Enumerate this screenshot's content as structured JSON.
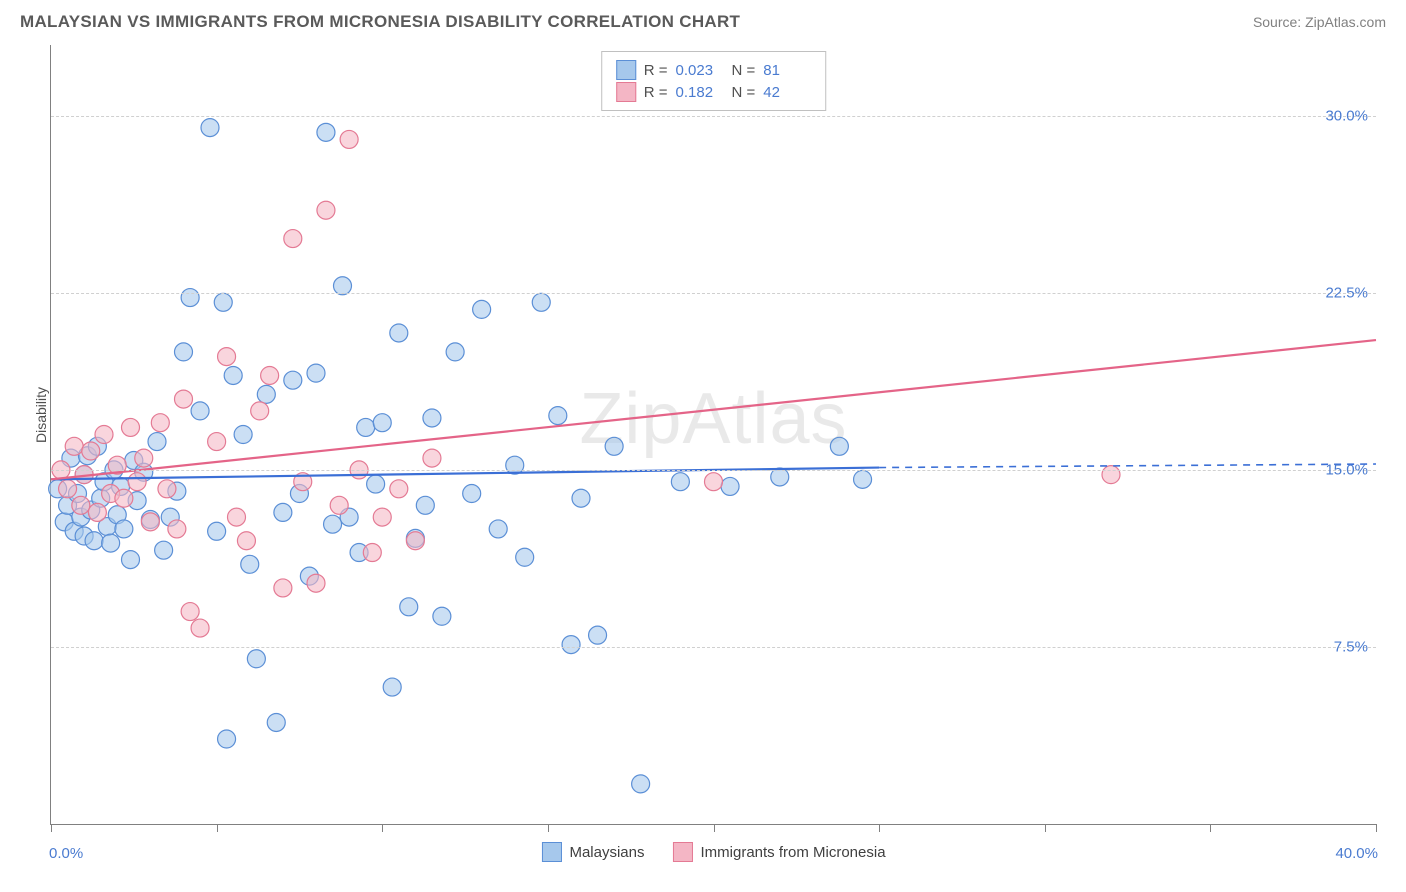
{
  "title": "MALAYSIAN VS IMMIGRANTS FROM MICRONESIA DISABILITY CORRELATION CHART",
  "source": "Source: ZipAtlas.com",
  "watermark": "ZipAtlas",
  "ylabel": "Disability",
  "series": [
    {
      "name": "Malaysians",
      "fill": "#a6c8ec",
      "stroke": "#5b8fd6",
      "r": "0.023",
      "n": "81"
    },
    {
      "name": "Immigrants from Micronesia",
      "fill": "#f4b6c5",
      "stroke": "#e47a94",
      "r": "0.182",
      "n": "42"
    }
  ],
  "chart": {
    "xlim": [
      0,
      40
    ],
    "ylim": [
      0,
      33
    ],
    "y_ticks": [
      7.5,
      15.0,
      22.5,
      30.0
    ],
    "y_tick_labels": [
      "7.5%",
      "15.0%",
      "22.5%",
      "30.0%"
    ],
    "x_ticks": [
      0,
      5,
      10,
      15,
      20,
      25,
      30,
      35,
      40
    ],
    "x_origin_label": "0.0%",
    "x_end_label": "40.0%",
    "grid_color": "#d0d0d0",
    "background": "#ffffff",
    "marker_radius": 9,
    "marker_opacity": 0.58,
    "trend_lines": [
      {
        "series": 0,
        "x1": 0,
        "y1": 14.6,
        "x2": 25,
        "y2": 15.1,
        "dash_from_x": 25,
        "dash_to_x": 40,
        "dash_y": 15.25,
        "color": "#3b6fd6",
        "width": 2.2
      },
      {
        "series": 1,
        "x1": 0,
        "y1": 14.6,
        "x2": 40,
        "y2": 20.5,
        "color": "#e46488",
        "width": 2.2
      }
    ],
    "points_blue": [
      [
        0.2,
        14.2
      ],
      [
        0.4,
        12.8
      ],
      [
        0.5,
        13.5
      ],
      [
        0.6,
        15.5
      ],
      [
        0.7,
        12.4
      ],
      [
        0.8,
        14.0
      ],
      [
        0.9,
        13.0
      ],
      [
        1.0,
        12.2
      ],
      [
        1.0,
        14.8
      ],
      [
        1.1,
        15.6
      ],
      [
        1.2,
        13.3
      ],
      [
        1.3,
        12.0
      ],
      [
        1.4,
        16.0
      ],
      [
        1.5,
        13.8
      ],
      [
        1.6,
        14.5
      ],
      [
        1.7,
        12.6
      ],
      [
        1.8,
        11.9
      ],
      [
        1.9,
        15.0
      ],
      [
        2.0,
        13.1
      ],
      [
        2.1,
        14.3
      ],
      [
        2.2,
        12.5
      ],
      [
        2.4,
        11.2
      ],
      [
        2.5,
        15.4
      ],
      [
        2.6,
        13.7
      ],
      [
        2.8,
        14.9
      ],
      [
        3.0,
        12.9
      ],
      [
        3.2,
        16.2
      ],
      [
        3.4,
        11.6
      ],
      [
        3.6,
        13.0
      ],
      [
        3.8,
        14.1
      ],
      [
        4.0,
        20.0
      ],
      [
        4.2,
        22.3
      ],
      [
        4.5,
        17.5
      ],
      [
        4.8,
        29.5
      ],
      [
        5.0,
        12.4
      ],
      [
        5.2,
        22.1
      ],
      [
        5.5,
        19.0
      ],
      [
        5.8,
        16.5
      ],
      [
        6.0,
        11.0
      ],
      [
        6.2,
        7.0
      ],
      [
        6.5,
        18.2
      ],
      [
        6.8,
        4.3
      ],
      [
        7.0,
        13.2
      ],
      [
        7.3,
        18.8
      ],
      [
        7.5,
        14.0
      ],
      [
        7.8,
        10.5
      ],
      [
        8.0,
        19.1
      ],
      [
        8.3,
        29.3
      ],
      [
        8.5,
        12.7
      ],
      [
        8.8,
        22.8
      ],
      [
        9.0,
        13.0
      ],
      [
        9.3,
        11.5
      ],
      [
        9.5,
        16.8
      ],
      [
        9.8,
        14.4
      ],
      [
        10.0,
        17.0
      ],
      [
        10.3,
        5.8
      ],
      [
        10.5,
        20.8
      ],
      [
        10.8,
        9.2
      ],
      [
        11.0,
        12.1
      ],
      [
        11.3,
        13.5
      ],
      [
        11.5,
        17.2
      ],
      [
        11.8,
        8.8
      ],
      [
        12.2,
        20.0
      ],
      [
        12.7,
        14.0
      ],
      [
        13.0,
        21.8
      ],
      [
        13.5,
        12.5
      ],
      [
        14.0,
        15.2
      ],
      [
        14.3,
        11.3
      ],
      [
        14.8,
        22.1
      ],
      [
        15.3,
        17.3
      ],
      [
        15.7,
        7.6
      ],
      [
        16.0,
        13.8
      ],
      [
        16.5,
        8.0
      ],
      [
        17.0,
        16.0
      ],
      [
        17.8,
        1.7
      ],
      [
        19.0,
        14.5
      ],
      [
        20.5,
        14.3
      ],
      [
        22.0,
        14.7
      ],
      [
        23.8,
        16.0
      ],
      [
        24.5,
        14.6
      ],
      [
        5.3,
        3.6
      ]
    ],
    "points_pink": [
      [
        0.3,
        15.0
      ],
      [
        0.5,
        14.2
      ],
      [
        0.7,
        16.0
      ],
      [
        0.9,
        13.5
      ],
      [
        1.0,
        14.8
      ],
      [
        1.2,
        15.8
      ],
      [
        1.4,
        13.2
      ],
      [
        1.6,
        16.5
      ],
      [
        1.8,
        14.0
      ],
      [
        2.0,
        15.2
      ],
      [
        2.2,
        13.8
      ],
      [
        2.4,
        16.8
      ],
      [
        2.6,
        14.5
      ],
      [
        2.8,
        15.5
      ],
      [
        3.0,
        12.8
      ],
      [
        3.3,
        17.0
      ],
      [
        3.5,
        14.2
      ],
      [
        3.8,
        12.5
      ],
      [
        4.0,
        18.0
      ],
      [
        4.5,
        8.3
      ],
      [
        5.0,
        16.2
      ],
      [
        5.3,
        19.8
      ],
      [
        5.6,
        13.0
      ],
      [
        5.9,
        12.0
      ],
      [
        6.3,
        17.5
      ],
      [
        6.6,
        19.0
      ],
      [
        7.0,
        10.0
      ],
      [
        7.3,
        24.8
      ],
      [
        7.6,
        14.5
      ],
      [
        8.0,
        10.2
      ],
      [
        8.3,
        26.0
      ],
      [
        8.7,
        13.5
      ],
      [
        9.0,
        29.0
      ],
      [
        9.3,
        15.0
      ],
      [
        9.7,
        11.5
      ],
      [
        10.0,
        13.0
      ],
      [
        10.5,
        14.2
      ],
      [
        11.0,
        12.0
      ],
      [
        11.5,
        15.5
      ],
      [
        20.0,
        14.5
      ],
      [
        32.0,
        14.8
      ],
      [
        4.2,
        9.0
      ]
    ]
  }
}
